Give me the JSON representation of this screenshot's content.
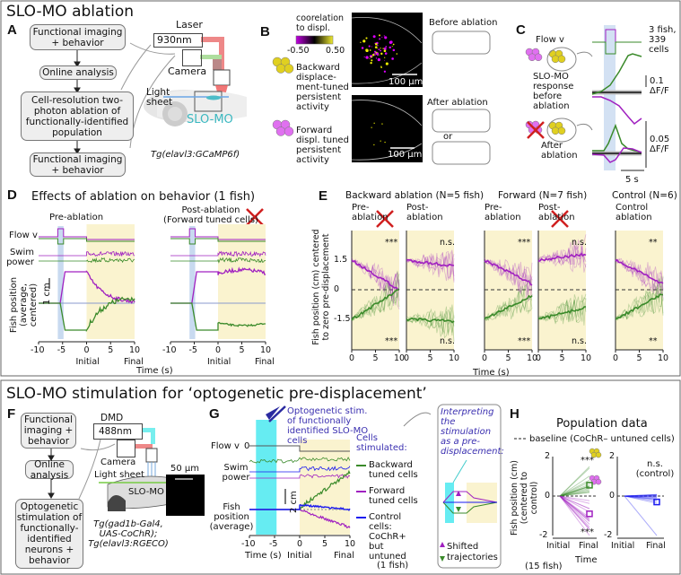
{
  "sections": {
    "ablation_title": "SLO-MO ablation",
    "stimulation_title": "SLO-MO stimulation for ‘optogenetic pre-displacement’"
  },
  "panel_letters": [
    "A",
    "B",
    "C",
    "D",
    "E",
    "F",
    "G",
    "H"
  ],
  "panel_a": {
    "steps": [
      "Functional imaging + behavior",
      "Online analysis",
      "Cell-resolution two-photon ablation of functionally-identified population",
      "Functional imaging + behavior"
    ],
    "laser_label": "Laser",
    "laser_wavelength": "930nm",
    "camera_label": "Camera",
    "light_sheet_label": "Light sheet",
    "region_label": "SLO-MO",
    "transgenic_line": "Tg(elavl3:GCaMP6f)"
  },
  "panel_b": {
    "colorbar_title": "coorelation to displ.",
    "colorbar_min": "-0.50",
    "colorbar_max": "0.50",
    "backward_label": "Backward displace-ment-tuned persistent activity",
    "forward_label": "Forward displ. tuned persistent activity",
    "scale_bar": "100 µm",
    "before_label": "Before ablation",
    "after_label": "After ablation",
    "or_label": "or"
  },
  "panel_c": {
    "flow_label": "Flow v",
    "before_label": "SLO-MO response before ablation",
    "after_label": "After ablation",
    "n_label": "3 fish, 339 cells",
    "scale_top": "0.1 ΔF/F",
    "scale_bottom": "0.05 ΔF/F",
    "time_scale": "5 s"
  },
  "panel_d": {
    "title": "Effects of ablation on behavior (1 fish)",
    "pre_title": "Pre-ablation",
    "post_title": "Post-ablation (Forward tuned cells)",
    "flow_label": "Flow v",
    "swim_label": "Swim power",
    "position_label": "Fish position (average, centered)",
    "scale_bar": "1 cm",
    "x_ticks": [
      "-10",
      "-5",
      "0",
      "5",
      "10"
    ],
    "initial_label": "Initial",
    "final_label": "Final",
    "xlabel": "Time (s)"
  },
  "panel_e": {
    "ylabel": "Fish position (cm) centered to zero pre-displacement",
    "y_ticks": [
      "1.5",
      "0",
      "-1.5"
    ],
    "groups": [
      {
        "title": "Backward ablation (N=5 fish)"
      },
      {
        "title": "Forward (N=7 fish)"
      },
      {
        "title": "Control (N=6)"
      }
    ],
    "panels": [
      {
        "title": "Pre-ablation",
        "sig_top": "***",
        "sig_bottom": "***"
      },
      {
        "title": "Post-ablation",
        "sig_top": "n.s.",
        "sig_bottom": "n.s."
      },
      {
        "title": "Pre-ablation",
        "sig_top": "***",
        "sig_bottom": "***"
      },
      {
        "title": "Post-ablation",
        "sig_top": "n.s.",
        "sig_bottom": "n.s."
      },
      {
        "title": "Control ablation",
        "sig_top": "**",
        "sig_bottom": "**"
      }
    ],
    "x_ticks": [
      "0",
      "5",
      "10"
    ],
    "xlabel": "Time (s)"
  },
  "panel_f": {
    "steps": [
      "Functional imaging + behavior",
      "Online analysis",
      "Optogenetic stimulation of functionally-identified neurons + behavior"
    ],
    "dmd_label": "DMD",
    "laser_wavelength": "488nm",
    "camera_label": "Camera",
    "light_sheet_label": "Light sheet",
    "region_label": "SLO-MO",
    "scale_bar": "50 µm",
    "transgenic_line": "Tg(gad1b-Gal4, UAS-CoChR); Tg(elavl3:RGECO)"
  },
  "panel_g": {
    "stim_label": "Optogenetic stim. of functionally identified SLO-MO cells",
    "flow_label": "Flow v",
    "flow_zero": "0",
    "swim_label": "Swim power",
    "position_label": "Fish position (average)",
    "scale_bar": "2 cm",
    "x_ticks": [
      "-10",
      "-5",
      "0",
      "5",
      "10"
    ],
    "xlabel": "Time (s)",
    "initial_label": "Initial",
    "final_label": "Final",
    "legend_title": "Cells stimulated:",
    "legend": [
      {
        "label": "Backward tuned cells",
        "color": "#3a8a2a"
      },
      {
        "label": "Forward tuned cells",
        "color": "#a020c0"
      },
      {
        "label": "Control cells: CoChR+ but untuned",
        "color": "#1a1af0"
      }
    ],
    "n_label": "(1 fish)",
    "interpretation": "Interpreting the stimulation as a pre-displacement:",
    "shifted_label": "Shifted",
    "trajectories_label": "trajectories"
  },
  "panel_h": {
    "title": "Population data",
    "baseline_label": "baseline (CoChR– untuned cells)",
    "ylabel": "Fish position (cm) (centered to control)",
    "y_ticks": [
      "2",
      "0",
      "-2"
    ],
    "x_ticks": [
      "Initial",
      "Final"
    ],
    "xlabel": "Time",
    "sig_top": "***",
    "sig_bottom": "***",
    "control_sig": "n.s. (control)",
    "n_label": "(15 fish)"
  },
  "colors": {
    "backward": "#3a8a2a",
    "forward": "#a020c0",
    "control": "#1a1af0",
    "yellow_cells": "#e0d020",
    "purple_cells": "#e070f0",
    "period_bg": "#faf3cf",
    "stim_band": "#66ecf2",
    "flow_band": "#c8daf0"
  }
}
